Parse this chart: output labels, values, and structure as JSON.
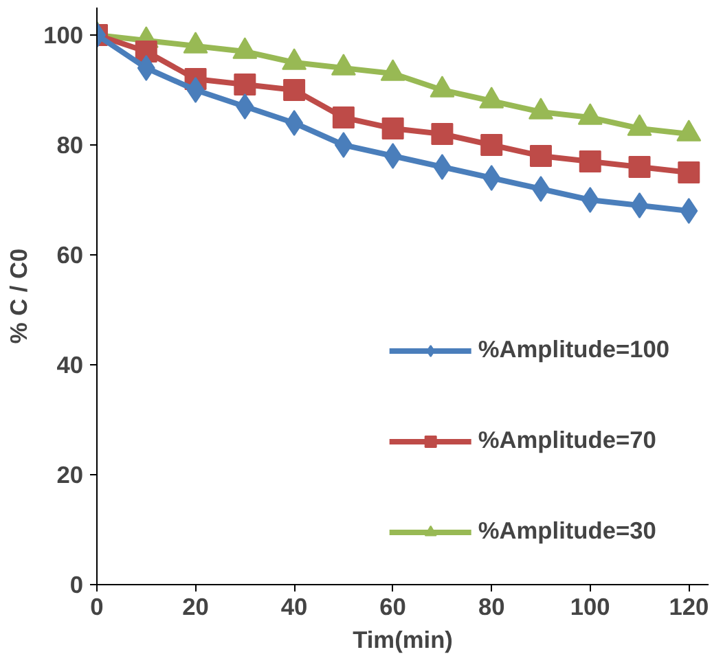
{
  "chart_data": {
    "type": "line",
    "xlabel": "Tim(min)",
    "ylabel": "% C / C0",
    "x": [
      0,
      10,
      20,
      30,
      40,
      50,
      60,
      70,
      80,
      90,
      100,
      110,
      120
    ],
    "xlim": [
      0,
      124
    ],
    "xticks": [
      0,
      20,
      40,
      60,
      80,
      100,
      120
    ],
    "ylim": [
      0,
      105
    ],
    "yticks": [
      0,
      20,
      40,
      60,
      80,
      100
    ],
    "grid": false,
    "legend": "right",
    "series": [
      {
        "name": "%Amplitude=100",
        "color": "#4a7ebb",
        "marker": "diamond",
        "values": [
          100,
          94,
          90,
          87,
          84,
          80,
          78,
          76,
          74,
          72,
          70,
          69,
          68
        ]
      },
      {
        "name": "%Amplitude=70",
        "color": "#be4b48",
        "marker": "square",
        "values": [
          100,
          97,
          92,
          91,
          90,
          85,
          83,
          82,
          80,
          78,
          77,
          76,
          75
        ]
      },
      {
        "name": "%Amplitude=30",
        "color": "#98b954",
        "marker": "triangle",
        "values": [
          100,
          99,
          98,
          97,
          95,
          94,
          93,
          90,
          88,
          86,
          85,
          83,
          82
        ]
      }
    ]
  }
}
